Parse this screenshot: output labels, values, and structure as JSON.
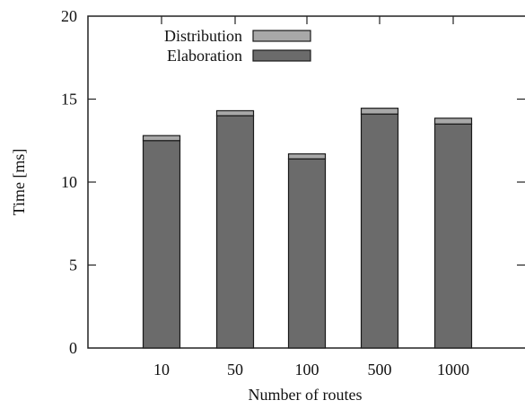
{
  "chart_data": {
    "type": "bar",
    "stacked": true,
    "categories": [
      "10",
      "50",
      "100",
      "500",
      "1000"
    ],
    "series": [
      {
        "name": "Elaboration",
        "values": [
          12.5,
          14.0,
          11.4,
          14.1,
          13.5
        ],
        "color": "#6b6b6b"
      },
      {
        "name": "Distribution",
        "values": [
          0.3,
          0.3,
          0.3,
          0.35,
          0.35
        ],
        "color": "#a8a8a8"
      }
    ],
    "title": "",
    "xlabel": "Number of routes",
    "ylabel": "Time [ms]",
    "ylim": [
      0,
      20
    ],
    "yticks": [
      0,
      5,
      10,
      15,
      20
    ],
    "grid": false,
    "legend_position": "top-left",
    "legend_order": [
      "Distribution",
      "Elaboration"
    ]
  }
}
